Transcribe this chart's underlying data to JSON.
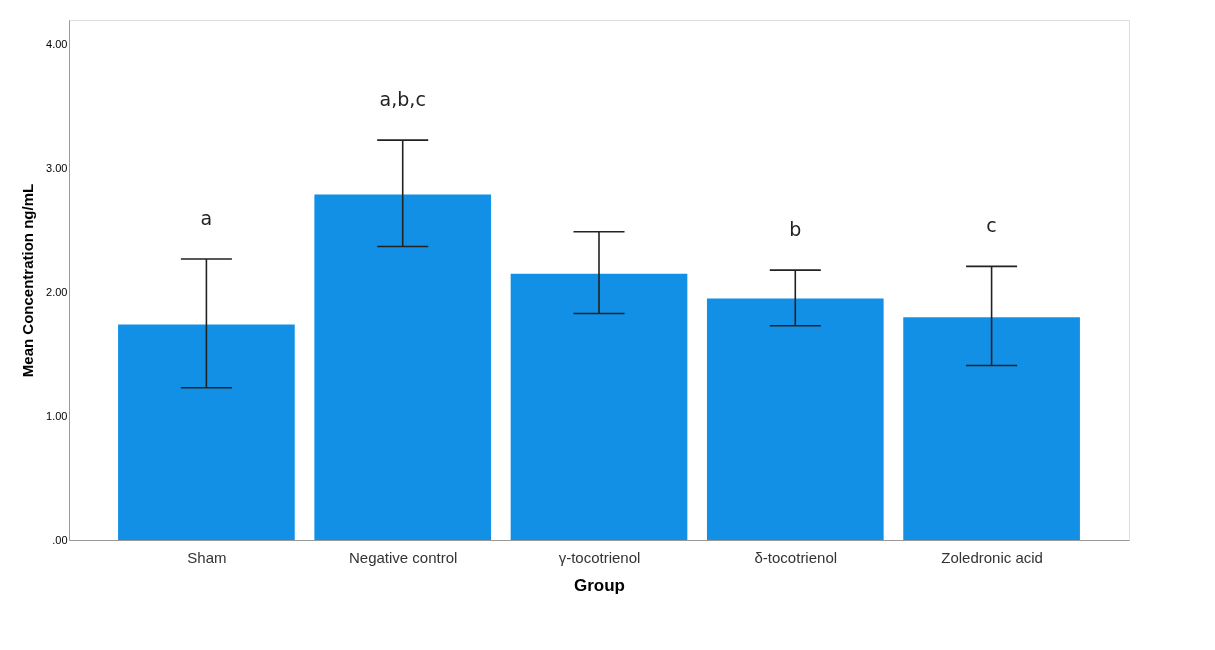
{
  "chart_data": {
    "type": "bar",
    "xlabel": "Group",
    "ylabel": "Mean Concentration ng/mL",
    "categories": [
      "Sham",
      "Negative control",
      "γ-tocotrienol",
      "δ-tocotrienol",
      "Zoledronic acid"
    ],
    "values": [
      1.74,
      2.79,
      2.15,
      1.95,
      1.8
    ],
    "errors": [
      [
        1.23,
        2.27
      ],
      [
        2.37,
        3.23
      ],
      [
        1.83,
        2.49
      ],
      [
        1.73,
        2.18
      ],
      [
        1.41,
        2.21
      ]
    ],
    "color": "#1190e6",
    "ylim": [
      0,
      4.2
    ],
    "yticks": [
      {
        "value": 0,
        "label": ".00"
      },
      {
        "value": 1,
        "label": "1.00"
      },
      {
        "value": 2,
        "label": "2.00"
      },
      {
        "value": 3,
        "label": "3.00"
      },
      {
        "value": 4,
        "label": "4.00"
      }
    ],
    "grid": false,
    "annotations": [
      {
        "text": "a",
        "x": "Sham",
        "y": 2.27
      },
      {
        "text": "a,b,c",
        "x": "Negative control",
        "y": 3.23
      },
      {
        "text": "b",
        "x": "δ-tocotrienol",
        "y": 2.18
      },
      {
        "text": "c",
        "x": "Zoledronic acid",
        "y": 2.21
      }
    ]
  }
}
